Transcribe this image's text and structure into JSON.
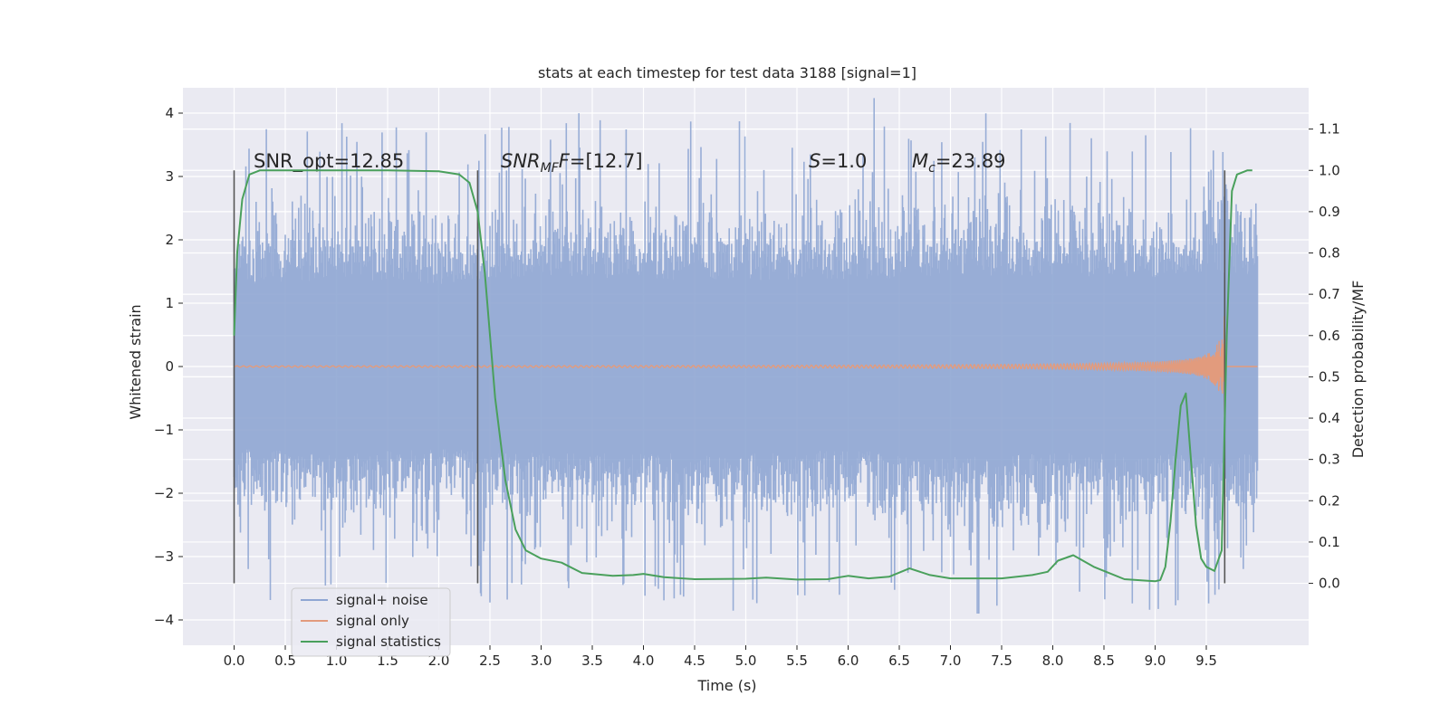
{
  "chart_data": {
    "type": "line",
    "title": "stats at each timestep for test data 3188 [signal=1]",
    "xlabel": "Time (s)",
    "ylabel": "Whitened strain",
    "y2label": "Detection probability/MF",
    "xlim": [
      -0.5,
      10.5
    ],
    "ylim": [
      -4.4,
      4.4
    ],
    "y2lim": [
      -0.15,
      1.2
    ],
    "x_ticks": [
      "0.0",
      "0.5",
      "1.0",
      "1.5",
      "2.0",
      "2.5",
      "3.0",
      "3.5",
      "4.0",
      "4.5",
      "5.0",
      "5.5",
      "6.0",
      "6.5",
      "7.0",
      "7.5",
      "8.0",
      "8.5",
      "9.0",
      "9.5"
    ],
    "y_ticks": [
      "4",
      "3",
      "2",
      "1",
      "0",
      "−1",
      "−2",
      "−3",
      "−4"
    ],
    "y2_ticks": [
      "1.1",
      "1.0",
      "0.9",
      "0.8",
      "0.7",
      "0.6",
      "0.5",
      "0.4",
      "0.3",
      "0.2",
      "0.1",
      "0.0"
    ],
    "grid": true,
    "legend_position": "lower-left",
    "annotations": {
      "snr_opt": "SNR_opt=12.85",
      "snr_mf_main": "SNR",
      "snr_mf_sub": "MF",
      "snr_mf_value": "=[12.7]",
      "s_label": "S",
      "s_value": "=1.0",
      "mc_main": "M",
      "mc_sub": "c",
      "mc_value": "=23.89"
    },
    "vertical_markers": [
      0.0,
      2.38,
      9.68
    ],
    "noise_envelope": {
      "x": [
        0.0,
        1.0,
        2.0,
        3.0,
        4.0,
        5.0,
        6.0,
        7.0,
        8.0,
        9.0,
        9.5,
        10.0
      ],
      "upper_typical": [
        2.0,
        2.1,
        2.0,
        2.2,
        2.1,
        2.1,
        2.1,
        2.2,
        2.2,
        2.1,
        2.3,
        2.2
      ],
      "lower_typical": [
        -2.0,
        -2.1,
        -2.0,
        -2.1,
        -2.1,
        -2.1,
        -2.0,
        -2.2,
        -2.1,
        -2.1,
        -2.2,
        -2.1
      ],
      "peak_max": 4.05,
      "peak_min": -3.9
    },
    "series": [
      {
        "name": "signal+ noise",
        "color": "#8fa6d3"
      },
      {
        "name": "signal only",
        "color": "#e29b7d"
      },
      {
        "name": "signal statistics",
        "color": "#4aa05c",
        "x": [
          0.0,
          0.03,
          0.08,
          0.15,
          0.25,
          0.4,
          0.8,
          1.5,
          2.0,
          2.2,
          2.3,
          2.38,
          2.45,
          2.55,
          2.65,
          2.75,
          2.85,
          3.0,
          3.2,
          3.4,
          3.7,
          3.9,
          4.0,
          4.2,
          4.5,
          5.0,
          5.2,
          5.5,
          5.8,
          6.0,
          6.2,
          6.4,
          6.6,
          6.8,
          7.0,
          7.5,
          7.8,
          7.95,
          8.05,
          8.2,
          8.4,
          8.7,
          9.0,
          9.05,
          9.1,
          9.15,
          9.2,
          9.25,
          9.3,
          9.35,
          9.4,
          9.45,
          9.5,
          9.58,
          9.65,
          9.7,
          9.75,
          9.8,
          9.9,
          9.95
        ],
        "values": [
          0.6,
          0.8,
          0.93,
          0.99,
          1.0,
          1.0,
          1.0,
          1.0,
          0.998,
          0.99,
          0.97,
          0.9,
          0.75,
          0.45,
          0.25,
          0.13,
          0.08,
          0.06,
          0.05,
          0.025,
          0.018,
          0.02,
          0.023,
          0.015,
          0.01,
          0.011,
          0.014,
          0.009,
          0.01,
          0.018,
          0.012,
          0.016,
          0.036,
          0.02,
          0.012,
          0.012,
          0.02,
          0.028,
          0.055,
          0.068,
          0.04,
          0.01,
          0.005,
          0.008,
          0.04,
          0.15,
          0.3,
          0.43,
          0.46,
          0.3,
          0.14,
          0.06,
          0.04,
          0.03,
          0.08,
          0.6,
          0.95,
          0.99,
          1.0,
          1.0
        ]
      }
    ]
  }
}
